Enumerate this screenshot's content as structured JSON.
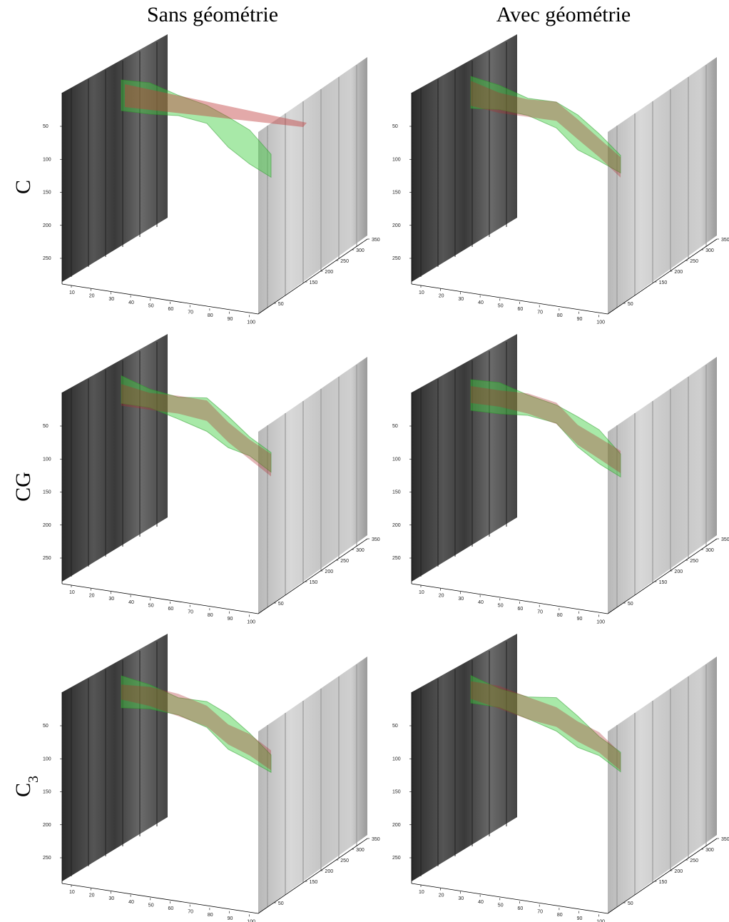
{
  "columns": [
    "Sans géométrie",
    "Avec géométrie"
  ],
  "rows": [
    {
      "label": "C"
    },
    {
      "label": "CG"
    },
    {
      "label": "C",
      "sub": "3"
    }
  ],
  "axes": {
    "x_ticks": [
      10,
      20,
      30,
      40,
      50,
      60,
      70,
      80,
      90,
      100
    ],
    "y_ticks": [
      50,
      100,
      150,
      200,
      250
    ],
    "z_ticks": [
      50,
      150,
      200,
      250,
      300,
      350
    ]
  }
}
